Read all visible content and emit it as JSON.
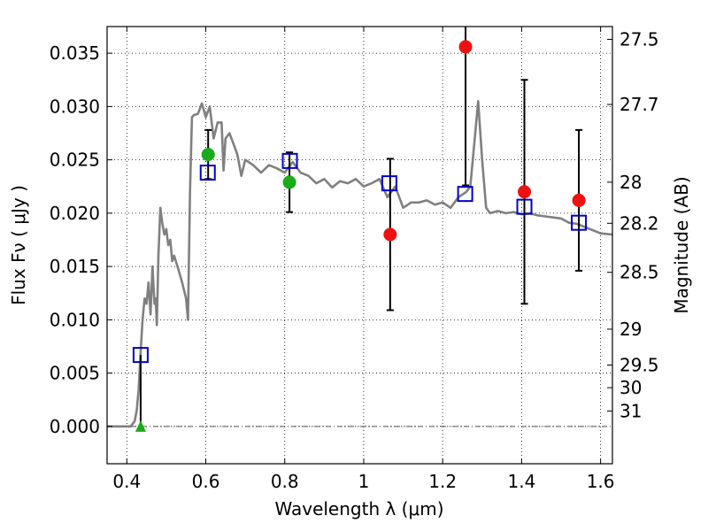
{
  "chart_data": {
    "type": "scatter",
    "xlabel": "Wavelength  λ (μm)",
    "ylabel": "Flux  Fν  ( μJy )",
    "y2label": "Magnitude (AB)",
    "xlim": [
      0.35,
      1.63
    ],
    "ylim": [
      -0.0035,
      0.0375
    ],
    "grid": true,
    "x_ticks": [
      0.4,
      0.6,
      0.8,
      1.0,
      1.2,
      1.4,
      1.6
    ],
    "x_tick_labels": [
      "0.4",
      "0.6",
      "0.8",
      "1",
      "1.2",
      "1.4",
      "1.6"
    ],
    "y_ticks": [
      0.0,
      0.005,
      0.01,
      0.015,
      0.02,
      0.025,
      0.03,
      0.035
    ],
    "y_tick_labels": [
      "0.000",
      "0.005",
      "0.010",
      "0.015",
      "0.020",
      "0.025",
      "0.030",
      "0.035"
    ],
    "mag_ticks": [
      "27.5",
      "27.7",
      "28",
      "28.2",
      "28.5",
      "29",
      "29.5",
      "30",
      "31"
    ],
    "model_sed": {
      "color": "#808080",
      "x": [
        0.35,
        0.41,
        0.42,
        0.425,
        0.43,
        0.435,
        0.44,
        0.445,
        0.45,
        0.455,
        0.46,
        0.465,
        0.47,
        0.473,
        0.476,
        0.48,
        0.485,
        0.49,
        0.495,
        0.5,
        0.505,
        0.51,
        0.515,
        0.52,
        0.53,
        0.54,
        0.55,
        0.555,
        0.56,
        0.565,
        0.57,
        0.58,
        0.59,
        0.6,
        0.61,
        0.62,
        0.63,
        0.64,
        0.645,
        0.65,
        0.66,
        0.67,
        0.68,
        0.69,
        0.7,
        0.72,
        0.74,
        0.76,
        0.78,
        0.8,
        0.82,
        0.84,
        0.86,
        0.88,
        0.9,
        0.92,
        0.94,
        0.96,
        0.98,
        1.0,
        1.02,
        1.04,
        1.06,
        1.08,
        1.1,
        1.12,
        1.14,
        1.16,
        1.18,
        1.2,
        1.22,
        1.24,
        1.26,
        1.27,
        1.28,
        1.29,
        1.3,
        1.31,
        1.32,
        1.34,
        1.36,
        1.38,
        1.4,
        1.42,
        1.44,
        1.46,
        1.48,
        1.5,
        1.52,
        1.54,
        1.56,
        1.58,
        1.6,
        1.63
      ],
      "y": [
        0.0,
        0.0,
        0.0005,
        0.0015,
        0.0035,
        0.007,
        0.01,
        0.012,
        0.0115,
        0.0135,
        0.0105,
        0.015,
        0.0115,
        0.012,
        0.0095,
        0.016,
        0.0205,
        0.019,
        0.018,
        0.0185,
        0.017,
        0.0175,
        0.0155,
        0.016,
        0.0148,
        0.0135,
        0.012,
        0.01,
        0.022,
        0.029,
        0.0292,
        0.0293,
        0.0303,
        0.029,
        0.03,
        0.027,
        0.0285,
        0.0285,
        0.024,
        0.027,
        0.0275,
        0.0265,
        0.0255,
        0.0235,
        0.025,
        0.0245,
        0.0238,
        0.0245,
        0.0242,
        0.0238,
        0.0248,
        0.0238,
        0.0235,
        0.0228,
        0.0232,
        0.0224,
        0.023,
        0.0228,
        0.0232,
        0.0225,
        0.0228,
        0.0232,
        0.0215,
        0.0225,
        0.0205,
        0.021,
        0.021,
        0.0212,
        0.0208,
        0.021,
        0.0205,
        0.0215,
        0.022,
        0.0225,
        0.0265,
        0.0305,
        0.025,
        0.0205,
        0.02,
        0.0202,
        0.02,
        0.0201,
        0.0199,
        0.02,
        0.0198,
        0.0197,
        0.0196,
        0.0195,
        0.0191,
        0.019,
        0.0187,
        0.0184,
        0.0181,
        0.018
      ]
    },
    "model_points": {
      "name": "model",
      "color": "#0000cc",
      "x": [
        0.435,
        0.605,
        0.813,
        1.065,
        1.257,
        1.407,
        1.545
      ],
      "y": [
        0.0067,
        0.0238,
        0.0249,
        0.0228,
        0.0218,
        0.0206,
        0.0191
      ]
    },
    "detections": {
      "color": "#1aaa1a",
      "x": [
        0.606,
        0.812
      ],
      "y": [
        0.0255,
        0.0229
      ],
      "yerr_low": [
        0.0023,
        0.0028
      ],
      "yerr_high": [
        0.0023,
        0.0028
      ]
    },
    "upper_limit": {
      "color": "#1aaa1a",
      "x": 0.435,
      "y": 0.0
    },
    "nondetections": {
      "color": "#ee1111",
      "x": [
        1.067,
        1.258,
        1.407,
        1.545
      ],
      "y": [
        0.018,
        0.0356,
        0.022,
        0.0212
      ],
      "yerr_low": [
        0.0071,
        0.013,
        0.0105,
        0.0066
      ],
      "yerr_high": [
        0.0071,
        0.013,
        0.0105,
        0.0066
      ]
    }
  }
}
